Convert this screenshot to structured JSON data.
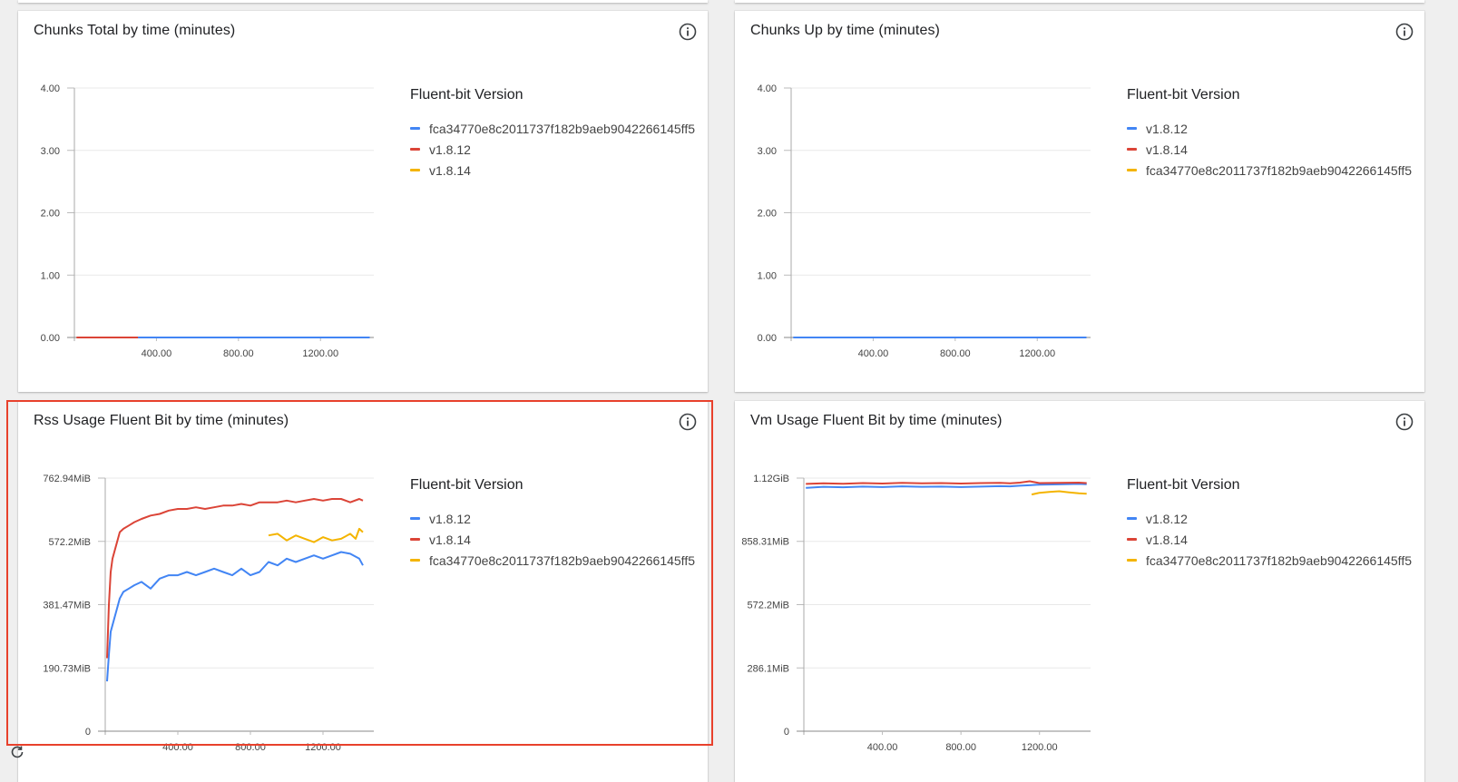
{
  "colors": {
    "blue": "#4285f4",
    "red": "#db4437",
    "yellow": "#f4b400"
  },
  "panels": [
    {
      "id": "chunks-total",
      "title": "Chunks Total by time (minutes)",
      "legend_title": "Fluent-bit Version",
      "legend": [
        {
          "label": "fca34770e8c2011737f182b9aeb9042266145ff5",
          "color": "#4285f4"
        },
        {
          "label": "v1.8.12",
          "color": "#db4437"
        },
        {
          "label": "v1.8.14",
          "color": "#f4b400"
        }
      ]
    },
    {
      "id": "chunks-up",
      "title": "Chunks Up by time (minutes)",
      "legend_title": "Fluent-bit Version",
      "legend": [
        {
          "label": "v1.8.12",
          "color": "#4285f4"
        },
        {
          "label": "v1.8.14",
          "color": "#db4437"
        },
        {
          "label": "fca34770e8c2011737f182b9aeb9042266145ff5",
          "color": "#f4b400"
        }
      ]
    },
    {
      "id": "rss-usage",
      "title": "Rss Usage Fluent Bit by time (minutes)",
      "legend_title": "Fluent-bit Version",
      "legend": [
        {
          "label": "v1.8.12",
          "color": "#4285f4"
        },
        {
          "label": "v1.8.14",
          "color": "#db4437"
        },
        {
          "label": "fca34770e8c2011737f182b9aeb9042266145ff5",
          "color": "#f4b400"
        }
      ]
    },
    {
      "id": "vm-usage",
      "title": "Vm Usage Fluent Bit by time (minutes)",
      "legend_title": "Fluent-bit Version",
      "legend": [
        {
          "label": "v1.8.12",
          "color": "#4285f4"
        },
        {
          "label": "v1.8.14",
          "color": "#db4437"
        },
        {
          "label": "fca34770e8c2011737f182b9aeb9042266145ff5",
          "color": "#f4b400"
        }
      ]
    }
  ],
  "chart_data": [
    {
      "type": "line",
      "title": "Chunks Total by time (minutes)",
      "xlabel": "",
      "ylabel": "",
      "xlim": [
        0,
        1460
      ],
      "ylim": [
        0,
        4
      ],
      "x_ticks": [
        400,
        800,
        1200
      ],
      "x_tick_labels": [
        "400.00",
        "800.00",
        "1200.00"
      ],
      "y_ticks": [
        0,
        1,
        2,
        3,
        4
      ],
      "y_tick_labels": [
        "0.00",
        "1.00",
        "2.00",
        "3.00",
        "4.00"
      ],
      "grid": true,
      "legend_position": "right",
      "series": [
        {
          "name": "fca34770e8c2011737f182b9aeb9042266145ff5",
          "color": "#4285f4",
          "x": [
            310,
            1440
          ],
          "y": [
            0,
            0
          ]
        },
        {
          "name": "v1.8.12",
          "color": "#db4437",
          "x": [
            10,
            310
          ],
          "y": [
            0,
            0
          ]
        },
        {
          "name": "v1.8.14",
          "color": "#f4b400",
          "x": [],
          "y": []
        }
      ]
    },
    {
      "type": "line",
      "title": "Chunks Up by time (minutes)",
      "xlabel": "",
      "ylabel": "",
      "xlim": [
        0,
        1460
      ],
      "ylim": [
        0,
        4
      ],
      "x_ticks": [
        400,
        800,
        1200
      ],
      "x_tick_labels": [
        "400.00",
        "800.00",
        "1200.00"
      ],
      "y_ticks": [
        0,
        1,
        2,
        3,
        4
      ],
      "y_tick_labels": [
        "0.00",
        "1.00",
        "2.00",
        "3.00",
        "4.00"
      ],
      "grid": true,
      "legend_position": "right",
      "series": [
        {
          "name": "v1.8.12",
          "color": "#4285f4",
          "x": [
            10,
            1440
          ],
          "y": [
            0,
            0
          ]
        },
        {
          "name": "v1.8.14",
          "color": "#db4437",
          "x": [],
          "y": []
        },
        {
          "name": "fca34770e8c2011737f182b9aeb9042266145ff5",
          "color": "#f4b400",
          "x": [],
          "y": []
        }
      ]
    },
    {
      "type": "line",
      "title": "Rss Usage Fluent Bit by time (minutes)",
      "xlabel": "",
      "ylabel": "",
      "xlim": [
        0,
        1480
      ],
      "ylim": [
        0,
        762.94
      ],
      "x_ticks": [
        400,
        800,
        1200
      ],
      "x_tick_labels": [
        "400.00",
        "800.00",
        "1200.00"
      ],
      "y_ticks": [
        0,
        190.73,
        381.47,
        572.2,
        762.94
      ],
      "y_tick_labels": [
        "0",
        "190.73MiB",
        "381.47MiB",
        "572.2MiB",
        "762.94MiB"
      ],
      "grid": true,
      "legend_position": "right",
      "series": [
        {
          "name": "v1.8.12",
          "color": "#4285f4",
          "x": [
            10,
            20,
            30,
            50,
            80,
            100,
            130,
            160,
            200,
            250,
            300,
            350,
            400,
            450,
            500,
            550,
            600,
            650,
            700,
            750,
            800,
            850,
            900,
            950,
            1000,
            1050,
            1100,
            1150,
            1200,
            1250,
            1300,
            1350,
            1400,
            1420
          ],
          "y": [
            150,
            230,
            300,
            340,
            400,
            420,
            430,
            440,
            450,
            430,
            460,
            470,
            470,
            480,
            470,
            480,
            490,
            480,
            470,
            490,
            470,
            480,
            510,
            500,
            520,
            510,
            520,
            530,
            520,
            530,
            540,
            535,
            520,
            500
          ]
        },
        {
          "name": "v1.8.14",
          "color": "#db4437",
          "x": [
            10,
            20,
            30,
            40,
            60,
            80,
            100,
            130,
            160,
            200,
            250,
            300,
            350,
            400,
            450,
            500,
            550,
            600,
            650,
            700,
            750,
            800,
            850,
            900,
            950,
            1000,
            1050,
            1100,
            1150,
            1200,
            1250,
            1300,
            1350,
            1400,
            1420
          ],
          "y": [
            220,
            380,
            480,
            520,
            560,
            600,
            610,
            620,
            630,
            640,
            650,
            655,
            665,
            670,
            670,
            675,
            670,
            675,
            680,
            680,
            685,
            680,
            690,
            690,
            690,
            695,
            690,
            695,
            700,
            695,
            700,
            700,
            690,
            700,
            695
          ]
        },
        {
          "name": "fca34770e8c2011737f182b9aeb9042266145ff5",
          "color": "#f4b400",
          "x": [
            900,
            950,
            1000,
            1050,
            1100,
            1150,
            1200,
            1250,
            1300,
            1350,
            1380,
            1400,
            1420
          ],
          "y": [
            590,
            595,
            575,
            590,
            580,
            570,
            585,
            575,
            580,
            595,
            580,
            610,
            600
          ]
        }
      ]
    },
    {
      "type": "line",
      "title": "Vm Usage Fluent Bit by time (minutes)",
      "xlabel": "",
      "ylabel": "",
      "xlim": [
        0,
        1460
      ],
      "ylim": [
        0,
        1144.41
      ],
      "x_ticks": [
        400,
        800,
        1200
      ],
      "x_tick_labels": [
        "400.00",
        "800.00",
        "1200.00"
      ],
      "y_ticks": [
        0,
        286.1,
        572.2,
        858.31,
        1144.41
      ],
      "y_tick_labels": [
        "0",
        "286.1MiB",
        "572.2MiB",
        "858.31MiB",
        "1.12GiB"
      ],
      "grid": true,
      "legend_position": "right",
      "series": [
        {
          "name": "v1.8.12",
          "color": "#4285f4",
          "x": [
            10,
            100,
            200,
            300,
            400,
            500,
            600,
            700,
            800,
            900,
            1000,
            1050,
            1100,
            1150,
            1200,
            1300,
            1400,
            1440
          ],
          "y": [
            1100,
            1105,
            1103,
            1106,
            1104,
            1107,
            1105,
            1106,
            1104,
            1106,
            1108,
            1107,
            1110,
            1112,
            1115,
            1116,
            1118,
            1117
          ]
        },
        {
          "name": "v1.8.14",
          "color": "#db4437",
          "x": [
            10,
            100,
            200,
            300,
            400,
            500,
            600,
            700,
            800,
            900,
            1000,
            1050,
            1100,
            1150,
            1200,
            1300,
            1400,
            1440
          ],
          "y": [
            1118,
            1121,
            1119,
            1122,
            1120,
            1123,
            1121,
            1122,
            1120,
            1122,
            1123,
            1121,
            1124,
            1130,
            1122,
            1123,
            1124,
            1122
          ]
        },
        {
          "name": "fca34770e8c2011737f182b9aeb9042266145ff5",
          "color": "#f4b400",
          "x": [
            1160,
            1200,
            1250,
            1300,
            1350,
            1400,
            1440
          ],
          "y": [
            1070,
            1078,
            1082,
            1085,
            1080,
            1076,
            1074
          ]
        }
      ]
    }
  ]
}
